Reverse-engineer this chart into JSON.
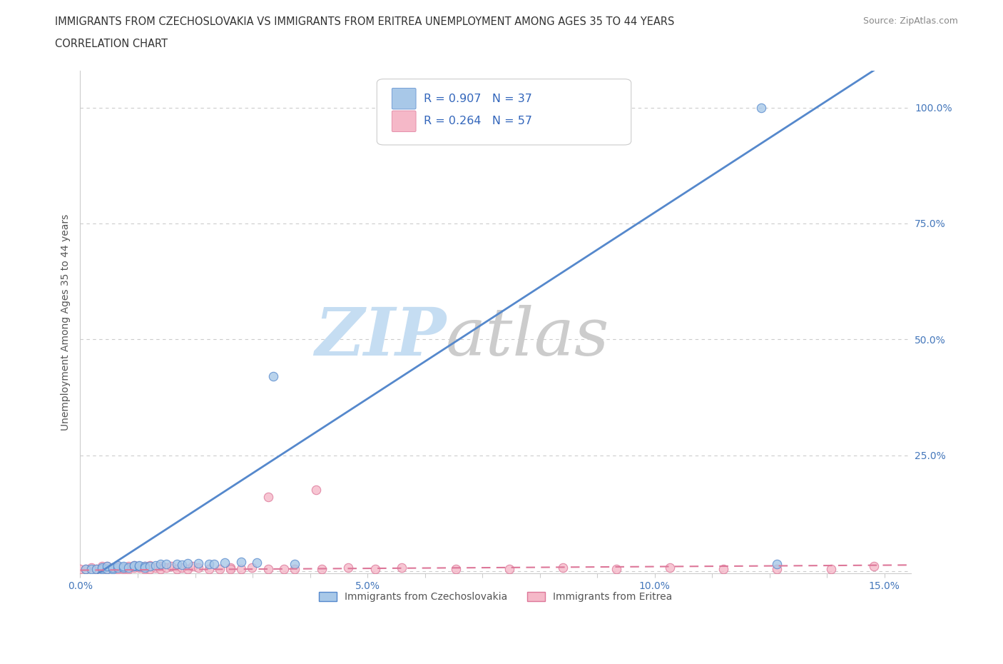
{
  "title_line1": "IMMIGRANTS FROM CZECHOSLOVAKIA VS IMMIGRANTS FROM ERITREA UNEMPLOYMENT AMONG AGES 35 TO 44 YEARS",
  "title_line2": "CORRELATION CHART",
  "source": "Source: ZipAtlas.com",
  "ylabel": "Unemployment Among Ages 35 to 44 years",
  "xmin": 0.0,
  "xmax": 0.155,
  "ymin": -0.005,
  "ymax": 1.08,
  "yticks": [
    0.0,
    0.25,
    0.5,
    0.75,
    1.0
  ],
  "ytick_labels": [
    "",
    "25.0%",
    "50.0%",
    "75.0%",
    "100.0%"
  ],
  "xtick_labels": [
    "0.0%",
    "",
    "",
    "",
    "",
    "5.0%",
    "",
    "",
    "",
    "",
    "10.0%",
    "",
    "",
    "",
    "15.0%"
  ],
  "grid_color": "#cccccc",
  "legend_r1": "R = 0.907   N = 37",
  "legend_r2": "R = 0.264   N = 57",
  "legend_label1": "Immigrants from Czechoslovakia",
  "legend_label2": "Immigrants from Eritrea",
  "czech_color": "#a8c8e8",
  "czech_edge_color": "#5588cc",
  "eritrea_color": "#f5b8c8",
  "eritrea_edge_color": "#dd7799",
  "czech_scatter_x": [
    0.001,
    0.002,
    0.003,
    0.004,
    0.004,
    0.005,
    0.005,
    0.006,
    0.006,
    0.007,
    0.007,
    0.008,
    0.008,
    0.009,
    0.01,
    0.01,
    0.011,
    0.011,
    0.012,
    0.012,
    0.013,
    0.014,
    0.015,
    0.016,
    0.018,
    0.019,
    0.02,
    0.022,
    0.024,
    0.025,
    0.027,
    0.03,
    0.033,
    0.036,
    0.04,
    0.127,
    0.13
  ],
  "czech_scatter_y": [
    0.005,
    0.005,
    0.005,
    0.005,
    0.008,
    0.005,
    0.01,
    0.005,
    0.008,
    0.008,
    0.012,
    0.008,
    0.01,
    0.008,
    0.01,
    0.012,
    0.01,
    0.012,
    0.01,
    0.008,
    0.01,
    0.012,
    0.015,
    0.015,
    0.015,
    0.013,
    0.017,
    0.017,
    0.015,
    0.015,
    0.018,
    0.02,
    0.018,
    0.42,
    0.015,
    1.0,
    0.015
  ],
  "eritrea_scatter_x": [
    0.0,
    0.001,
    0.002,
    0.003,
    0.004,
    0.004,
    0.005,
    0.005,
    0.006,
    0.007,
    0.007,
    0.008,
    0.008,
    0.009,
    0.009,
    0.01,
    0.01,
    0.011,
    0.011,
    0.012,
    0.012,
    0.013,
    0.013,
    0.014,
    0.015,
    0.015,
    0.016,
    0.017,
    0.018,
    0.019,
    0.02,
    0.021,
    0.022,
    0.024,
    0.026,
    0.028,
    0.03,
    0.032,
    0.035,
    0.038,
    0.04,
    0.045,
    0.05,
    0.055,
    0.06,
    0.07,
    0.08,
    0.09,
    0.1,
    0.11,
    0.12,
    0.13,
    0.14,
    0.148,
    0.044,
    0.035,
    0.028
  ],
  "eritrea_scatter_y": [
    0.005,
    0.005,
    0.008,
    0.005,
    0.008,
    0.01,
    0.005,
    0.01,
    0.008,
    0.005,
    0.01,
    0.005,
    0.008,
    0.01,
    0.005,
    0.008,
    0.012,
    0.008,
    0.01,
    0.005,
    0.01,
    0.005,
    0.012,
    0.008,
    0.01,
    0.005,
    0.008,
    0.01,
    0.005,
    0.008,
    0.005,
    0.01,
    0.008,
    0.005,
    0.005,
    0.008,
    0.005,
    0.008,
    0.005,
    0.005,
    0.005,
    0.005,
    0.008,
    0.005,
    0.008,
    0.005,
    0.005,
    0.008,
    0.005,
    0.008,
    0.005,
    0.005,
    0.005,
    0.01,
    0.175,
    0.16,
    0.005
  ],
  "czech_line_slope": 7.5,
  "czech_line_intercept": -0.03,
  "eritrea_line_slope": 0.072,
  "eritrea_line_intercept": 0.002,
  "title_color": "#333333",
  "axis_label_color": "#555555",
  "tick_color": "#4477bb",
  "watermark_zip_color": "#c5ddf2",
  "watermark_atlas_color": "#cccccc",
  "background_color": "#ffffff",
  "legend_text_color": "#3366bb"
}
